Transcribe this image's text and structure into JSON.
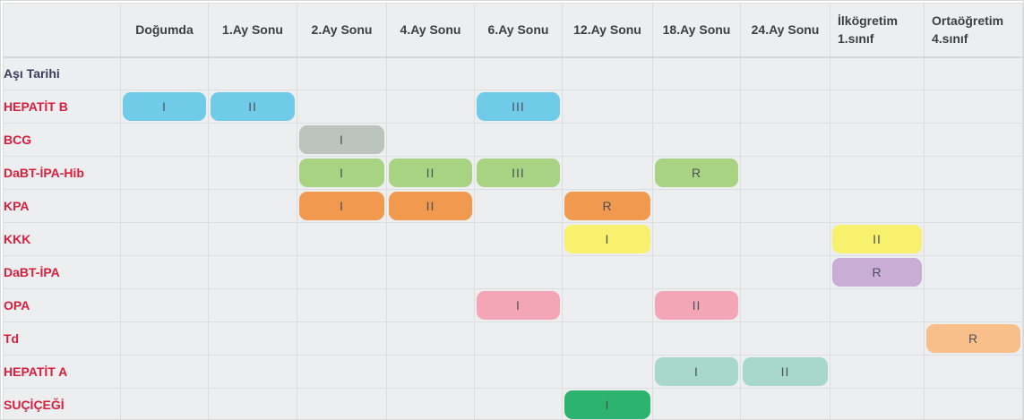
{
  "colors": {
    "table_background": "#edeef0",
    "grid_line": "#dcdee0",
    "header_text": "#3e3e42",
    "vaccine_label_text": "#d6203e",
    "date_label_text": "#3c3c5c",
    "pill_text": "#4b5258"
  },
  "chart_data": {
    "type": "table",
    "columns": [
      "",
      "Doğumda",
      "1.Ay Sonu",
      "2.Ay Sonu",
      "4.Ay Sonu",
      "6.Ay Sonu",
      "12.Ay Sonu",
      "18.Ay Sonu",
      "24.Ay Sonu",
      "İlkögretim 1.sınıf",
      "Ortaöğretim 4.sınıf"
    ],
    "wrapped_columns": [
      "İlkögretim 1.sınıf",
      "Ortaöğretim 4.sınıf"
    ],
    "rows": [
      {
        "label": "Aşı Tarihi",
        "kind": "date",
        "pill_color": null,
        "doses": []
      },
      {
        "label": "HEPATİT B",
        "kind": "vaccine",
        "pill_color": "#70cbe9",
        "doses": [
          {
            "column": "Doğumda",
            "text": "I"
          },
          {
            "column": "1.Ay Sonu",
            "text": "II"
          },
          {
            "column": "6.Ay Sonu",
            "text": "III"
          }
        ]
      },
      {
        "label": "BCG",
        "kind": "vaccine",
        "pill_color": "#bdc3bd",
        "doses": [
          {
            "column": "2.Ay Sonu",
            "text": "I"
          }
        ]
      },
      {
        "label": "DaBT-İPA-Hib",
        "kind": "vaccine",
        "pill_color": "#a8d383",
        "doses": [
          {
            "column": "2.Ay Sonu",
            "text": "I"
          },
          {
            "column": "4.Ay Sonu",
            "text": "II"
          },
          {
            "column": "6.Ay Sonu",
            "text": "III"
          },
          {
            "column": "18.Ay Sonu",
            "text": "R"
          }
        ]
      },
      {
        "label": "KPA",
        "kind": "vaccine",
        "pill_color": "#f0994f",
        "doses": [
          {
            "column": "2.Ay Sonu",
            "text": "I"
          },
          {
            "column": "4.Ay Sonu",
            "text": "II"
          },
          {
            "column": "12.Ay Sonu",
            "text": "R"
          }
        ]
      },
      {
        "label": "KKK",
        "kind": "vaccine",
        "pill_color": "#f8f16e",
        "doses": [
          {
            "column": "12.Ay Sonu",
            "text": "I"
          },
          {
            "column": "İlkögretim 1.sınıf",
            "text": "II"
          }
        ]
      },
      {
        "label": "DaBT-İPA",
        "kind": "vaccine",
        "pill_color": "#c9add5",
        "doses": [
          {
            "column": "İlkögretim 1.sınıf",
            "text": "R"
          }
        ]
      },
      {
        "label": "OPA",
        "kind": "vaccine",
        "pill_color": "#f4a6b6",
        "doses": [
          {
            "column": "6.Ay Sonu",
            "text": "I"
          },
          {
            "column": "18.Ay Sonu",
            "text": "II"
          }
        ]
      },
      {
        "label": "Td",
        "kind": "vaccine",
        "pill_color": "#f9bf8a",
        "doses": [
          {
            "column": "Ortaöğretim 4.sınıf",
            "text": "R"
          }
        ]
      },
      {
        "label": "HEPATİT A",
        "kind": "vaccine",
        "pill_color": "#a8d8cc",
        "doses": [
          {
            "column": "18.Ay Sonu",
            "text": "I"
          },
          {
            "column": "24.Ay Sonu",
            "text": "II"
          }
        ]
      },
      {
        "label": "SUÇİÇEĞİ",
        "kind": "vaccine",
        "pill_color": "#2db36e",
        "doses": [
          {
            "column": "12.Ay Sonu",
            "text": "I"
          }
        ]
      }
    ]
  }
}
